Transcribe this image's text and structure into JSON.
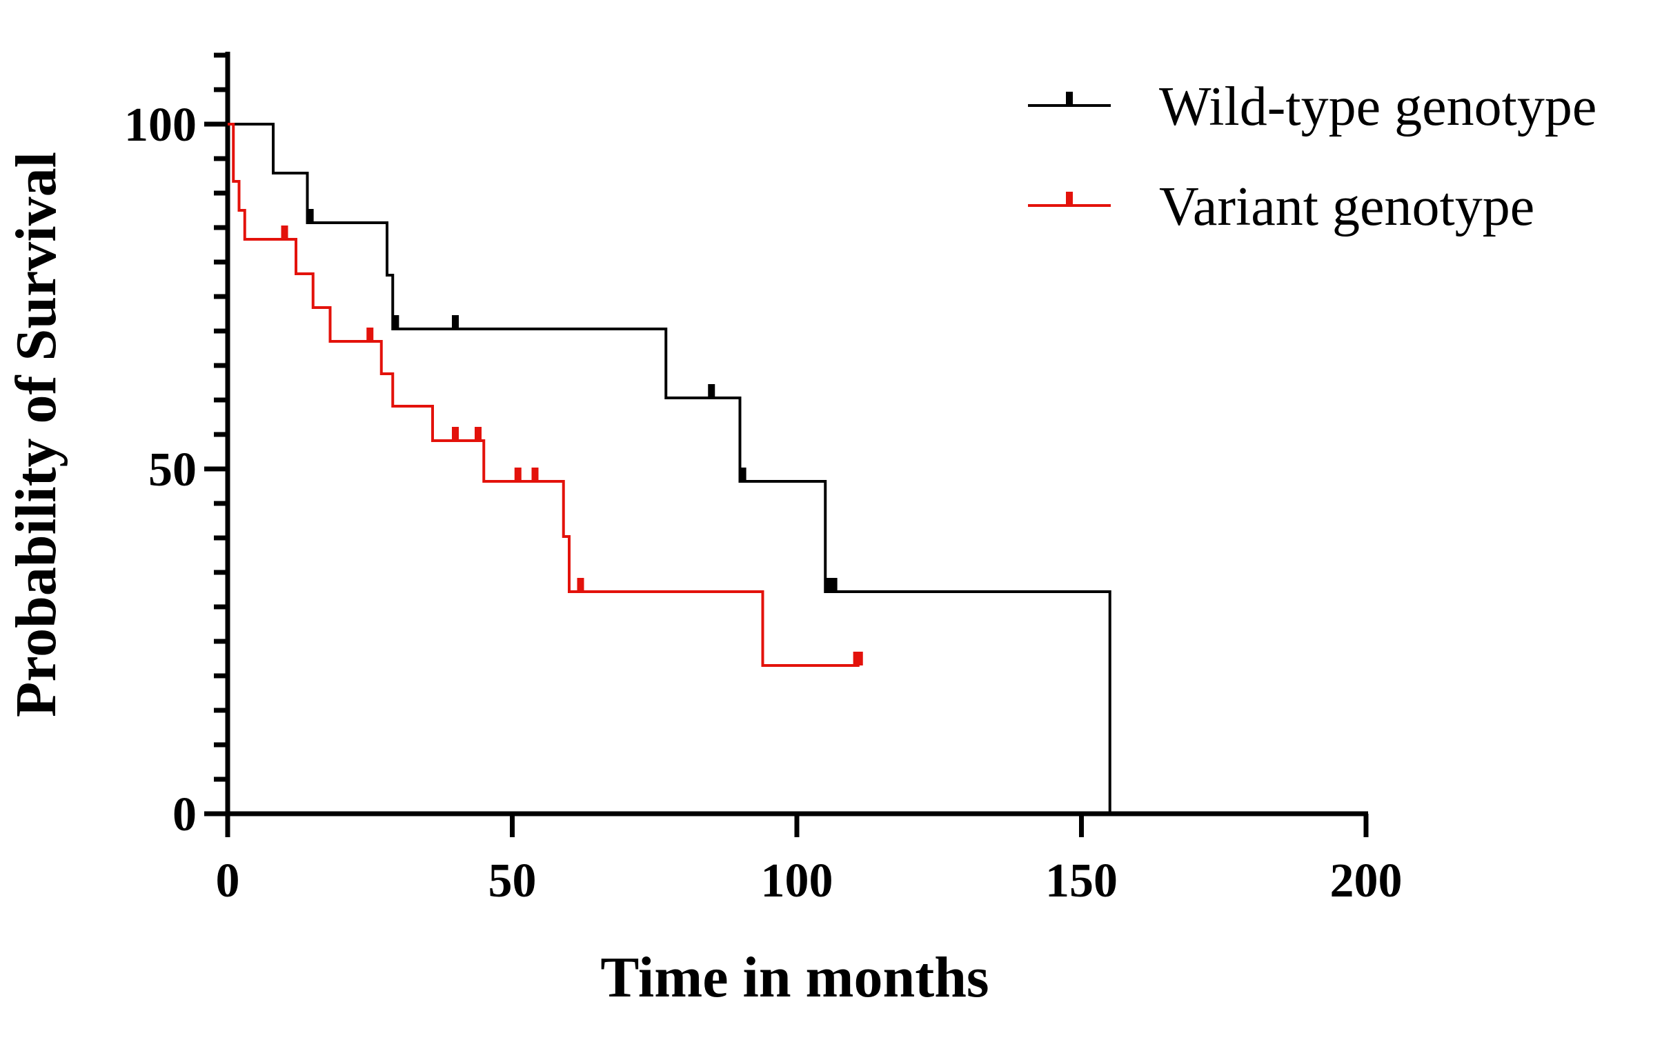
{
  "chart_data": {
    "type": "line",
    "subtype": "kaplan-meier-survival",
    "title": "",
    "xlabel": "Time in months",
    "ylabel": "Probability of Survival",
    "xlim": [
      0,
      200
    ],
    "ylim": [
      0,
      110
    ],
    "xticks": [
      0,
      50,
      100,
      150,
      200
    ],
    "yticks": [
      0,
      50,
      100
    ],
    "y_minor_step": 5,
    "legend_position": "top-right",
    "series": [
      {
        "name": "Wild-type genotype",
        "color": "#000000",
        "steps": [
          [
            0,
            100
          ],
          [
            8,
            92.9
          ],
          [
            14,
            85.7
          ],
          [
            28,
            78.1
          ],
          [
            29,
            70.3
          ],
          [
            77,
            60.3
          ],
          [
            90,
            48.2
          ],
          [
            105,
            32.2
          ],
          [
            155,
            0
          ]
        ],
        "end_x": 155,
        "censored": [
          [
            14.5,
            85.7
          ],
          [
            29.5,
            70.3
          ],
          [
            40,
            70.3
          ],
          [
            85,
            60.3
          ],
          [
            90.5,
            48.2
          ],
          [
            105.5,
            32.2
          ],
          [
            106.5,
            32.2
          ]
        ]
      },
      {
        "name": "Variant genotype",
        "color": "#e3120b",
        "steps": [
          [
            0,
            100
          ],
          [
            1,
            91.7
          ],
          [
            2,
            87.5
          ],
          [
            3,
            83.3
          ],
          [
            12,
            78.3
          ],
          [
            15,
            73.4
          ],
          [
            18,
            68.5
          ],
          [
            27,
            63.8
          ],
          [
            29,
            59.1
          ],
          [
            36,
            54.1
          ],
          [
            45,
            48.2
          ],
          [
            59,
            40.2
          ],
          [
            60,
            32.2
          ],
          [
            94,
            21.5
          ]
        ],
        "end_x": 111,
        "censored": [
          [
            10,
            83.3
          ],
          [
            25,
            68.5
          ],
          [
            40,
            54.1
          ],
          [
            44,
            54.1
          ],
          [
            51,
            48.2
          ],
          [
            54,
            48.2
          ],
          [
            62,
            32.2
          ],
          [
            110.5,
            21.5
          ],
          [
            111,
            21.5
          ]
        ]
      }
    ]
  }
}
